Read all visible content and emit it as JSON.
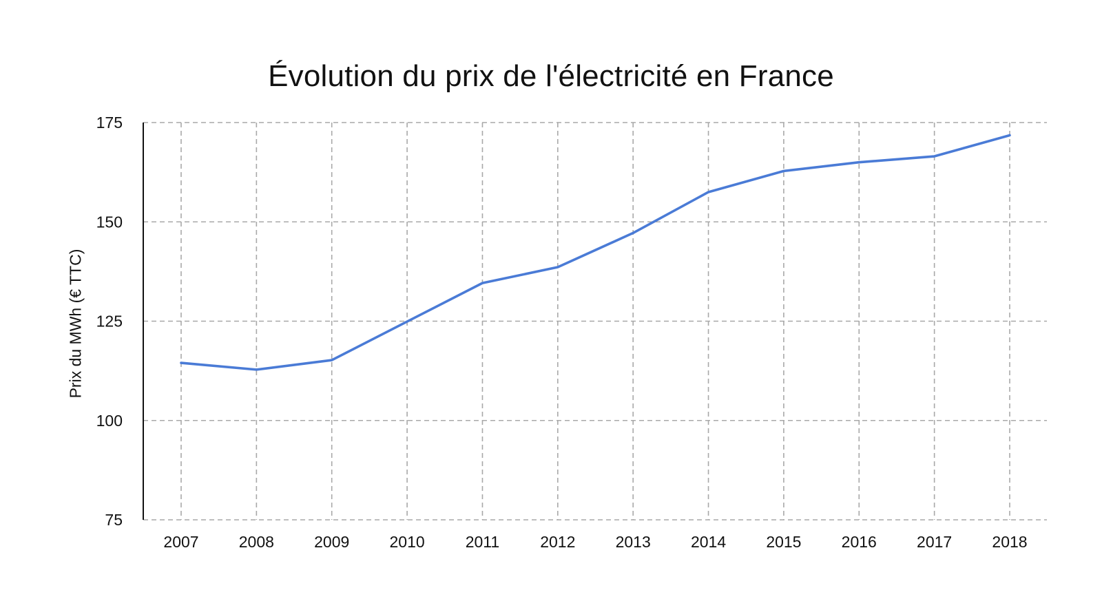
{
  "chart_data": {
    "type": "line",
    "title": "Évolution du prix de l'électricité en France",
    "xlabel": "",
    "ylabel": "Prix du MWh (€ TTC)",
    "x": [
      "2007",
      "2008",
      "2009",
      "2010",
      "2011",
      "2012",
      "2013",
      "2014",
      "2015",
      "2016",
      "2017",
      "2018"
    ],
    "series": [
      {
        "values": [
          114.5,
          112.8,
          115.2,
          124.9,
          134.6,
          138.6,
          147.2,
          157.5,
          162.8,
          165.0,
          166.5,
          171.8
        ],
        "color": "#4a7bd6"
      }
    ],
    "ylim": [
      75,
      175
    ],
    "yticks": [
      175,
      150,
      125,
      100,
      75
    ],
    "grid": true,
    "grid_style": "dashed",
    "legend": "none"
  }
}
